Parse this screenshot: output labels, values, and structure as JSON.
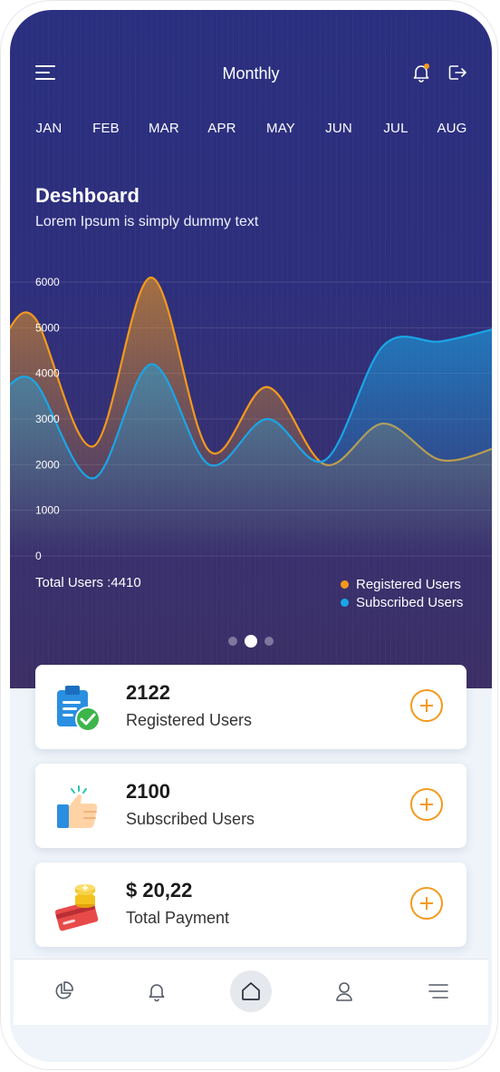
{
  "header": {
    "title": "Monthly"
  },
  "months": [
    "JAN",
    "FEB",
    "MAR",
    "APR",
    "MAY",
    "JUN",
    "JUL",
    "AUG"
  ],
  "dashboard": {
    "title": "Deshboard",
    "subtitle": "Lorem Ipsum is simply dummy text"
  },
  "chart_data": {
    "type": "area",
    "y_ticks": [
      "6000",
      "5000",
      "4000",
      "3000",
      "2000",
      "1000",
      "0"
    ],
    "ylim": [
      0,
      6000
    ],
    "grid": true,
    "series": [
      {
        "name": "Registered Users",
        "color": "#f39a1c",
        "x": [
          0,
          0.5,
          1.5,
          2.5,
          3.5,
          4.5,
          5.5,
          6.5,
          7.5,
          8.5
        ],
        "values": [
          4900,
          5200,
          2400,
          6100,
          2300,
          3700,
          2000,
          2900,
          2100,
          2400
        ]
      },
      {
        "name": "Subscribed Users",
        "color": "#1aa6e6",
        "x": [
          0,
          0.5,
          1.5,
          2.5,
          3.5,
          4.5,
          5.5,
          6.5,
          7.5,
          8.5
        ],
        "values": [
          3700,
          3800,
          1700,
          4200,
          2000,
          3000,
          2100,
          4600,
          4700,
          5000
        ]
      }
    ]
  },
  "summary": {
    "total_users": "Total Users :4410"
  },
  "legend": [
    {
      "label": "Registered Users",
      "color": "#f39a1c"
    },
    {
      "label": "Subscribed Users",
      "color": "#1aa6e6"
    }
  ],
  "pager": {
    "count": 3,
    "active": 1
  },
  "cards": [
    {
      "value": "2122",
      "label": "Registered Users",
      "icon": "clipboard-check-icon"
    },
    {
      "value": "2100",
      "label": "Subscribed Users",
      "icon": "thumbs-up-icon"
    },
    {
      "value": "$ 20,22",
      "label": "Total Payment",
      "icon": "card-coins-icon"
    }
  ],
  "nav": [
    "pie-chart-icon",
    "bell-icon",
    "home-icon",
    "user-icon",
    "menu-icon"
  ],
  "nav_active": "home-icon",
  "colors": {
    "accent": "#f39a1c",
    "blue": "#1aa6e6",
    "hero": "#2c2f7d"
  }
}
